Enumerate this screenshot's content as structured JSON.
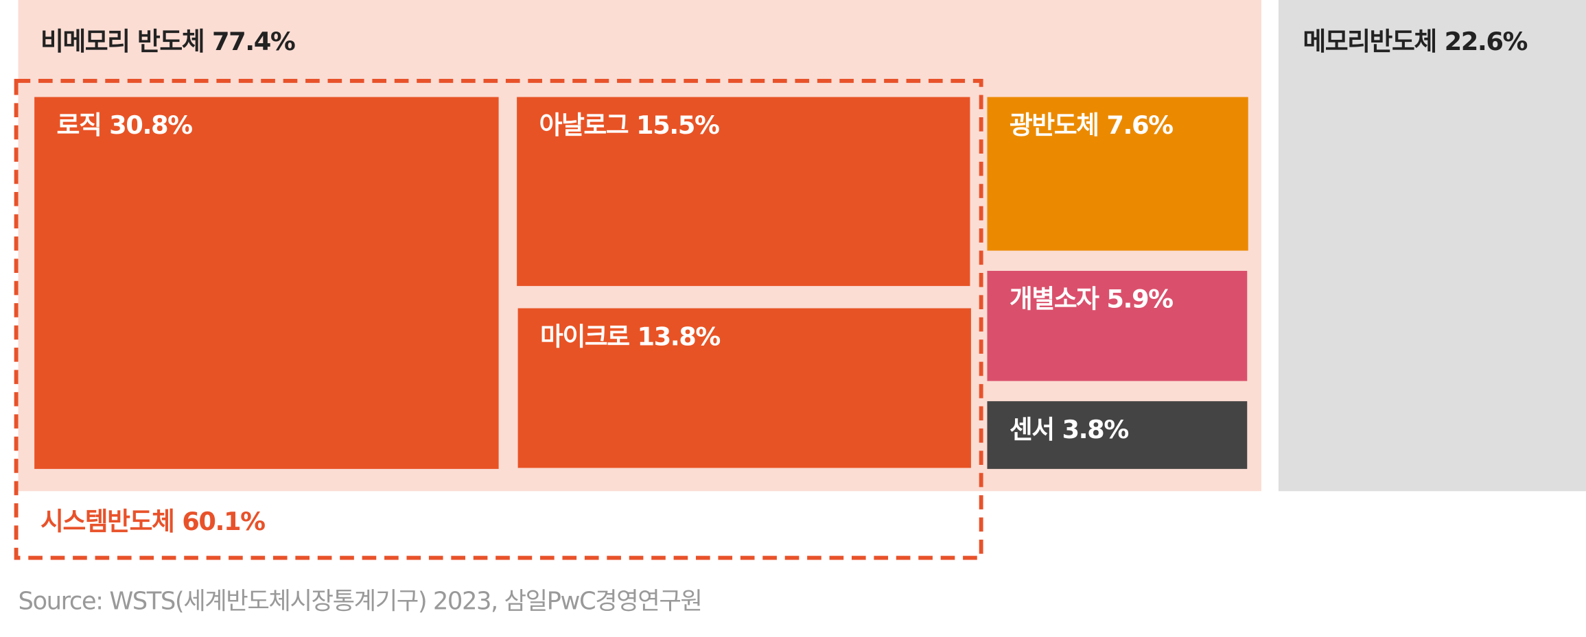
{
  "chart_data": {
    "type": "treemap",
    "groups": [
      {
        "name": "비메모리 반도체",
        "value": 77.4,
        "value_label": "77.4%",
        "color": "#fbddd4"
      },
      {
        "name": "메모리반도체",
        "value": 22.6,
        "value_label": "22.6%",
        "color": "#dedede"
      }
    ],
    "subgroup": {
      "name": "시스템반도체",
      "value": 60.1,
      "value_label": "60.1%",
      "color": "#e8522a"
    },
    "items": [
      {
        "name": "로직",
        "value": 30.8,
        "value_label": "30.8%",
        "color": "#e85325"
      },
      {
        "name": "아날로그",
        "value": 15.5,
        "value_label": "15.5%",
        "color": "#e85325"
      },
      {
        "name": "마이크로",
        "value": 13.8,
        "value_label": "13.8%",
        "color": "#e85325"
      },
      {
        "name": "광반도체",
        "value": 7.6,
        "value_label": "7.6%",
        "color": "#eb8a00"
      },
      {
        "name": "개별소자",
        "value": 5.9,
        "value_label": "5.9%",
        "color": "#da506c"
      },
      {
        "name": "센서",
        "value": 3.8,
        "value_label": "3.8%",
        "color": "#444444"
      }
    ],
    "source": "Source: WSTS(세계반도체시장통계기구) 2023, 삼일PwC경영연구원"
  }
}
